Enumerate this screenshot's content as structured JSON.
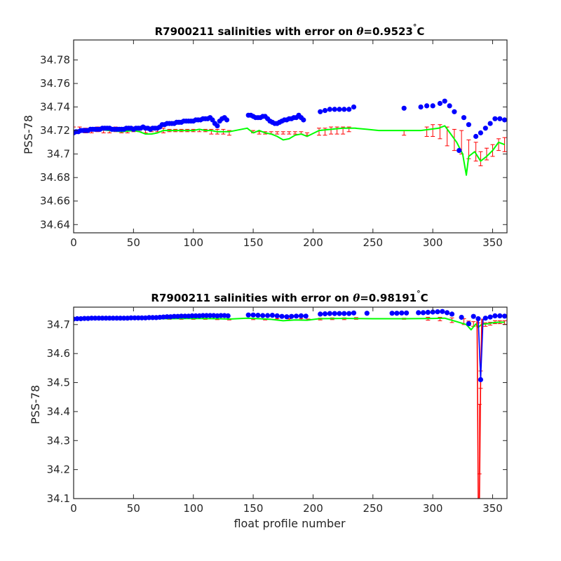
{
  "figure": {
    "xlabel": "float profile number"
  },
  "chart_data": [
    {
      "type": "line",
      "title_prefix": "R7900211 salinities with error on ",
      "title_symbol": "θ",
      "title_value": "=0.9523",
      "title_degree": "°",
      "title_unit": "C",
      "ylabel": "PSS-78",
      "xlabel": "",
      "xlim": [
        0,
        362
      ],
      "ylim": [
        34.633,
        34.797
      ],
      "xticks": [
        0,
        50,
        100,
        150,
        200,
        250,
        300,
        350
      ],
      "xtick_labels": [
        "0",
        "50",
        "100",
        "150",
        "200",
        "250",
        "300",
        "350"
      ],
      "yticks": [
        34.64,
        34.66,
        34.68,
        34.7,
        34.72,
        34.74,
        34.76,
        34.78
      ],
      "ytick_labels": [
        "34.64",
        "34.66",
        "34.68",
        "34.7",
        "34.72",
        "34.74",
        "34.76",
        "34.78"
      ],
      "grid": false,
      "series": [
        {
          "kind": "markers",
          "color": "#0000ff",
          "x": [
            0,
            2,
            4,
            6,
            8,
            10,
            12,
            14,
            16,
            18,
            20,
            22,
            24,
            26,
            28,
            30,
            32,
            34,
            36,
            38,
            40,
            42,
            44,
            46,
            48,
            50,
            52,
            54,
            56,
            58,
            60,
            62,
            64,
            66,
            68,
            70,
            72,
            74,
            76,
            78,
            80,
            82,
            84,
            86,
            88,
            90,
            92,
            94,
            96,
            98,
            100,
            102,
            104,
            106,
            108,
            110,
            112,
            114,
            116,
            118,
            120,
            122,
            124,
            126,
            128,
            146,
            148,
            150,
            152,
            154,
            156,
            158,
            160,
            162,
            164,
            166,
            168,
            170,
            172,
            174,
            176,
            178,
            180,
            182,
            184,
            186,
            188,
            190,
            192,
            206,
            210,
            214,
            218,
            222,
            226,
            230,
            234,
            276,
            290,
            295,
            300,
            306,
            310,
            314,
            318,
            322,
            326,
            330,
            336,
            340,
            344,
            348,
            352,
            356,
            360
          ],
          "y": [
            34.718,
            34.719,
            34.719,
            34.72,
            34.72,
            34.72,
            34.72,
            34.721,
            34.721,
            34.721,
            34.721,
            34.721,
            34.722,
            34.722,
            34.722,
            34.722,
            34.721,
            34.721,
            34.721,
            34.721,
            34.721,
            34.721,
            34.722,
            34.722,
            34.722,
            34.721,
            34.722,
            34.722,
            34.722,
            34.723,
            34.722,
            34.722,
            34.721,
            34.722,
            34.722,
            34.722,
            34.723,
            34.725,
            34.725,
            34.726,
            34.726,
            34.726,
            34.726,
            34.727,
            34.727,
            34.727,
            34.728,
            34.728,
            34.728,
            34.728,
            34.728,
            34.729,
            34.729,
            34.729,
            34.73,
            34.73,
            34.73,
            34.731,
            34.729,
            34.726,
            34.724,
            34.728,
            34.73,
            34.731,
            34.729,
            34.733,
            34.733,
            34.732,
            34.731,
            34.731,
            34.731,
            34.732,
            34.732,
            34.73,
            34.728,
            34.727,
            34.726,
            34.726,
            34.727,
            34.728,
            34.729,
            34.729,
            34.73,
            34.73,
            34.731,
            34.731,
            34.733,
            34.731,
            34.729,
            34.736,
            34.737,
            34.738,
            34.738,
            34.738,
            34.738,
            34.738,
            34.74,
            34.739,
            34.74,
            34.741,
            34.741,
            34.743,
            34.745,
            34.741,
            34.736,
            34.703,
            34.731,
            34.725,
            34.715,
            34.718,
            34.722,
            34.726,
            34.73,
            34.73,
            34.729
          ]
        },
        {
          "kind": "errorbar",
          "color": "#ff0000",
          "x": [
            0,
            5,
            10,
            15,
            20,
            25,
            30,
            35,
            40,
            45,
            50,
            55,
            60,
            65,
            70,
            75,
            80,
            85,
            90,
            95,
            100,
            105,
            110,
            115,
            120,
            125,
            130,
            150,
            155,
            160,
            165,
            170,
            175,
            180,
            185,
            190,
            195,
            205,
            210,
            215,
            220,
            225,
            230,
            276,
            295,
            300,
            306,
            312,
            318,
            324,
            330,
            336,
            340,
            345,
            350,
            355,
            360
          ],
          "y": [
            34.72,
            34.721,
            34.72,
            34.72,
            34.721,
            34.72,
            34.72,
            34.721,
            34.72,
            34.72,
            34.721,
            34.721,
            34.72,
            34.721,
            34.721,
            34.72,
            34.72,
            34.72,
            34.72,
            34.72,
            34.72,
            34.72,
            34.72,
            34.719,
            34.719,
            34.719,
            34.718,
            34.719,
            34.718,
            34.718,
            34.718,
            34.718,
            34.718,
            34.718,
            34.718,
            34.718,
            34.717,
            34.719,
            34.719,
            34.72,
            34.72,
            34.72,
            34.721,
            34.718,
            34.719,
            34.72,
            34.719,
            34.715,
            34.712,
            34.71,
            34.704,
            34.702,
            34.696,
            34.7,
            34.703,
            34.708,
            34.708
          ],
          "err": [
            0.003,
            0.002,
            0.002,
            0.002,
            0.002,
            0.002,
            0.002,
            0.002,
            0.002,
            0.002,
            0.002,
            0.002,
            0.002,
            0.002,
            0.002,
            0.002,
            0.001,
            0.001,
            0.001,
            0.001,
            0.001,
            0.001,
            0.001,
            0.002,
            0.002,
            0.002,
            0.002,
            0.001,
            0.001,
            0.001,
            0.001,
            0.001,
            0.001,
            0.001,
            0.001,
            0.001,
            0.001,
            0.003,
            0.003,
            0.003,
            0.003,
            0.003,
            0.002,
            0.002,
            0.004,
            0.005,
            0.006,
            0.008,
            0.009,
            0.01,
            0.008,
            0.008,
            0.006,
            0.005,
            0.005,
            0.005,
            0.006
          ]
        },
        {
          "kind": "line",
          "color": "#00ff00",
          "x": [
            0,
            10,
            20,
            30,
            40,
            50,
            55,
            60,
            65,
            70,
            75,
            80,
            90,
            100,
            105,
            110,
            115,
            120,
            125,
            130,
            145,
            150,
            155,
            160,
            165,
            170,
            175,
            180,
            185,
            190,
            195,
            205,
            215,
            225,
            235,
            245,
            255,
            265,
            276,
            290,
            305,
            310,
            315,
            320,
            325,
            328,
            330,
            335,
            340,
            345,
            350,
            355,
            360
          ],
          "y": [
            34.72,
            34.72,
            34.721,
            34.72,
            34.719,
            34.72,
            34.719,
            34.717,
            34.717,
            34.718,
            34.72,
            34.72,
            34.72,
            34.72,
            34.721,
            34.72,
            34.72,
            34.719,
            34.719,
            34.719,
            34.722,
            34.718,
            34.72,
            34.718,
            34.717,
            34.715,
            34.712,
            34.713,
            34.716,
            34.717,
            34.715,
            34.72,
            34.721,
            34.722,
            34.722,
            34.721,
            34.72,
            34.72,
            34.72,
            34.72,
            34.722,
            34.724,
            34.717,
            34.71,
            34.7,
            34.682,
            34.698,
            34.702,
            34.694,
            34.698,
            34.703,
            34.71,
            34.708
          ]
        }
      ]
    },
    {
      "type": "line",
      "title_prefix": "R7900211 salinities with error on ",
      "title_symbol": "θ",
      "title_value": "=0.98191",
      "title_degree": "°",
      "title_unit": "C",
      "ylabel": "PSS-78",
      "xlabel": "float profile number",
      "xlim": [
        0,
        362
      ],
      "ylim": [
        34.1,
        34.76
      ],
      "xticks": [
        0,
        50,
        100,
        150,
        200,
        250,
        300,
        350
      ],
      "xtick_labels": [
        "0",
        "50",
        "100",
        "150",
        "200",
        "250",
        "300",
        "350"
      ],
      "yticks": [
        34.1,
        34.2,
        34.3,
        34.4,
        34.5,
        34.6,
        34.7
      ],
      "ytick_labels": [
        "34.1",
        "34.2",
        "34.3",
        "34.4",
        "34.5",
        "34.6",
        "34.7"
      ],
      "grid": false,
      "series": [
        {
          "kind": "markers",
          "color": "#0000ff",
          "x": [
            0,
            3,
            6,
            9,
            12,
            15,
            18,
            21,
            24,
            27,
            30,
            33,
            36,
            39,
            42,
            45,
            48,
            51,
            54,
            57,
            60,
            63,
            66,
            69,
            72,
            75,
            78,
            81,
            84,
            87,
            90,
            93,
            96,
            99,
            102,
            105,
            108,
            111,
            114,
            117,
            120,
            123,
            126,
            129,
            146,
            150,
            154,
            158,
            162,
            166,
            170,
            174,
            178,
            182,
            186,
            190,
            194,
            206,
            210,
            214,
            218,
            222,
            226,
            230,
            234,
            245,
            266,
            270,
            274,
            278,
            288,
            292,
            296,
            300,
            304,
            308,
            312,
            316,
            324,
            330,
            334,
            338,
            340,
            344,
            348,
            352,
            356,
            360
          ],
          "y": [
            34.719,
            34.72,
            34.72,
            34.721,
            34.721,
            34.722,
            34.722,
            34.722,
            34.722,
            34.722,
            34.722,
            34.722,
            34.722,
            34.722,
            34.722,
            34.722,
            34.723,
            34.723,
            34.723,
            34.723,
            34.723,
            34.724,
            34.724,
            34.724,
            34.725,
            34.726,
            34.727,
            34.727,
            34.728,
            34.728,
            34.729,
            34.729,
            34.729,
            34.73,
            34.73,
            34.73,
            34.731,
            34.731,
            34.731,
            34.731,
            34.73,
            34.731,
            34.731,
            34.73,
            34.733,
            34.733,
            34.732,
            34.731,
            34.731,
            34.732,
            34.73,
            34.728,
            34.727,
            34.728,
            34.729,
            34.73,
            34.729,
            34.736,
            34.737,
            34.738,
            34.738,
            34.738,
            34.738,
            34.738,
            34.74,
            34.739,
            34.739,
            34.739,
            34.74,
            34.74,
            34.741,
            34.741,
            34.742,
            34.743,
            34.744,
            34.745,
            34.741,
            34.736,
            34.725,
            34.703,
            34.728,
            34.72,
            34.51,
            34.722,
            34.726,
            34.73,
            34.73,
            34.729
          ]
        },
        {
          "kind": "errorbar",
          "color": "#ff0000",
          "x": [
            0,
            10,
            20,
            30,
            40,
            50,
            60,
            70,
            80,
            90,
            100,
            110,
            120,
            130,
            150,
            160,
            170,
            180,
            190,
            196,
            206,
            216,
            226,
            236,
            276,
            296,
            306,
            316,
            326,
            330,
            334,
            338,
            339,
            340,
            344,
            348,
            352,
            356,
            360
          ],
          "y": [
            34.72,
            34.72,
            34.72,
            34.72,
            34.72,
            34.721,
            34.721,
            34.721,
            34.72,
            34.72,
            34.72,
            34.72,
            34.719,
            34.718,
            34.719,
            34.718,
            34.718,
            34.718,
            34.718,
            34.717,
            34.719,
            34.72,
            34.72,
            34.721,
            34.72,
            34.72,
            34.719,
            34.715,
            34.71,
            34.704,
            34.702,
            34.7,
            34.305,
            34.51,
            34.7,
            34.703,
            34.708,
            34.708,
            34.707
          ],
          "err": [
            0.002,
            0.002,
            0.002,
            0.002,
            0.002,
            0.002,
            0.002,
            0.002,
            0.002,
            0.002,
            0.002,
            0.002,
            0.002,
            0.002,
            0.002,
            0.002,
            0.002,
            0.002,
            0.002,
            0.002,
            0.003,
            0.003,
            0.003,
            0.003,
            0.002,
            0.005,
            0.006,
            0.008,
            0.01,
            0.008,
            0.008,
            0.006,
            0.12,
            0.03,
            0.006,
            0.005,
            0.005,
            0.005,
            0.006
          ]
        },
        {
          "kind": "line",
          "color": "#00ff00",
          "x": [
            0,
            20,
            40,
            60,
            80,
            100,
            120,
            130,
            145,
            155,
            165,
            175,
            185,
            195,
            205,
            225,
            250,
            276,
            300,
            310,
            320,
            328,
            332,
            336,
            338,
            339,
            340,
            342,
            346,
            350,
            355,
            360
          ],
          "y": [
            34.72,
            34.721,
            34.72,
            34.72,
            34.72,
            34.721,
            34.72,
            34.719,
            34.722,
            34.72,
            34.718,
            34.713,
            34.716,
            34.715,
            34.72,
            34.721,
            34.72,
            34.72,
            34.721,
            34.722,
            34.71,
            34.7,
            34.682,
            34.702,
            34.69,
            34.694,
            34.698,
            34.702,
            34.703,
            34.706,
            34.708,
            34.708
          ]
        },
        {
          "kind": "spike",
          "color": "#ff0000",
          "x": [
            337,
            338,
            339,
            340,
            341
          ],
          "y": [
            34.72,
            34.1,
            34.1,
            34.51,
            34.72
          ]
        },
        {
          "kind": "spike",
          "color": "#0000ff",
          "x": [
            338,
            340,
            342
          ],
          "y": [
            34.72,
            34.51,
            34.72
          ]
        }
      ]
    }
  ]
}
